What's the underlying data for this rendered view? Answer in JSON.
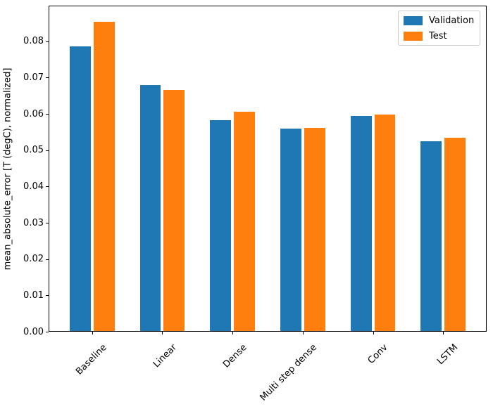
{
  "chart_data": {
    "type": "bar",
    "title": "",
    "xlabel": "",
    "ylabel": "mean_absolute_error [T (degC), normalized]",
    "categories": [
      "Baseline",
      "Linear",
      "Dense",
      "Multi step dense",
      "Conv",
      "LSTM"
    ],
    "series": [
      {
        "name": "Validation",
        "color": "#1f77b4",
        "values": [
          0.0786,
          0.068,
          0.0583,
          0.056,
          0.0595,
          0.0525
        ]
      },
      {
        "name": "Test",
        "color": "#ff7f0e",
        "values": [
          0.0853,
          0.0665,
          0.0605,
          0.0562,
          0.0598,
          0.0535
        ]
      }
    ],
    "yticks": [
      {
        "label": "0.00",
        "value": 0.0
      },
      {
        "label": "0.01",
        "value": 0.01
      },
      {
        "label": "0.02",
        "value": 0.02
      },
      {
        "label": "0.03",
        "value": 0.03
      },
      {
        "label": "0.04",
        "value": 0.04
      },
      {
        "label": "0.05",
        "value": 0.05
      },
      {
        "label": "0.06",
        "value": 0.06
      },
      {
        "label": "0.07",
        "value": 0.07
      },
      {
        "label": "0.08",
        "value": 0.08
      }
    ],
    "ylim": [
      0,
      0.0898
    ],
    "xlim": [
      -0.6185,
      5.6185
    ],
    "bar_width": 0.3,
    "bar_offsets": [
      -0.17,
      0.17
    ],
    "xtick_rotation": 45,
    "grid": false,
    "legend_position": "upper right"
  }
}
